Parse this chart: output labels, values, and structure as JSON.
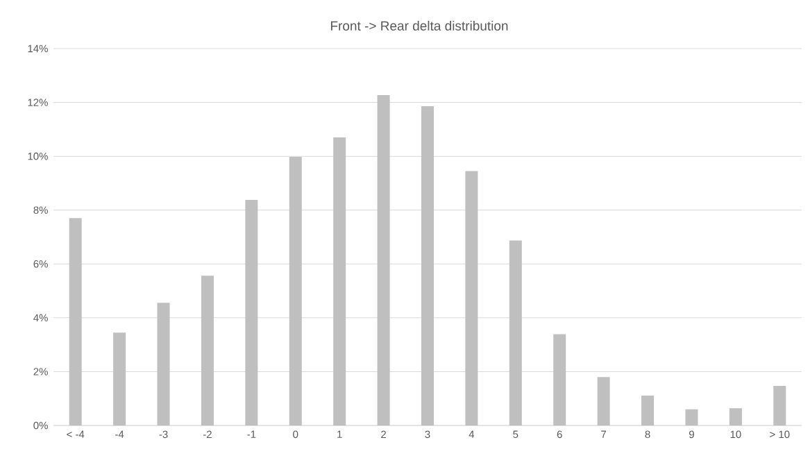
{
  "chart_data": {
    "type": "bar",
    "title": "Front -> Rear delta distribution",
    "categories": [
      "< -4",
      "-4",
      "-3",
      "-2",
      "-1",
      "0",
      "1",
      "2",
      "3",
      "4",
      "5",
      "6",
      "7",
      "8",
      "9",
      "10",
      "> 10"
    ],
    "values": [
      7.7,
      3.45,
      4.56,
      5.56,
      8.38,
      9.98,
      10.7,
      12.27,
      11.86,
      9.45,
      6.87,
      3.39,
      1.8,
      1.11,
      0.6,
      0.64,
      1.47
    ],
    "color": "#bfbfbf",
    "ylim": [
      0,
      14
    ],
    "yticks": [
      {
        "value": 0,
        "label": "0%"
      },
      {
        "value": 2,
        "label": "2%"
      },
      {
        "value": 4,
        "label": "4%"
      },
      {
        "value": 6,
        "label": "6%"
      },
      {
        "value": 8,
        "label": "8%"
      },
      {
        "value": 10,
        "label": "10%"
      },
      {
        "value": 12,
        "label": "12%"
      },
      {
        "value": 14,
        "label": "14%"
      }
    ],
    "grid": "y"
  }
}
